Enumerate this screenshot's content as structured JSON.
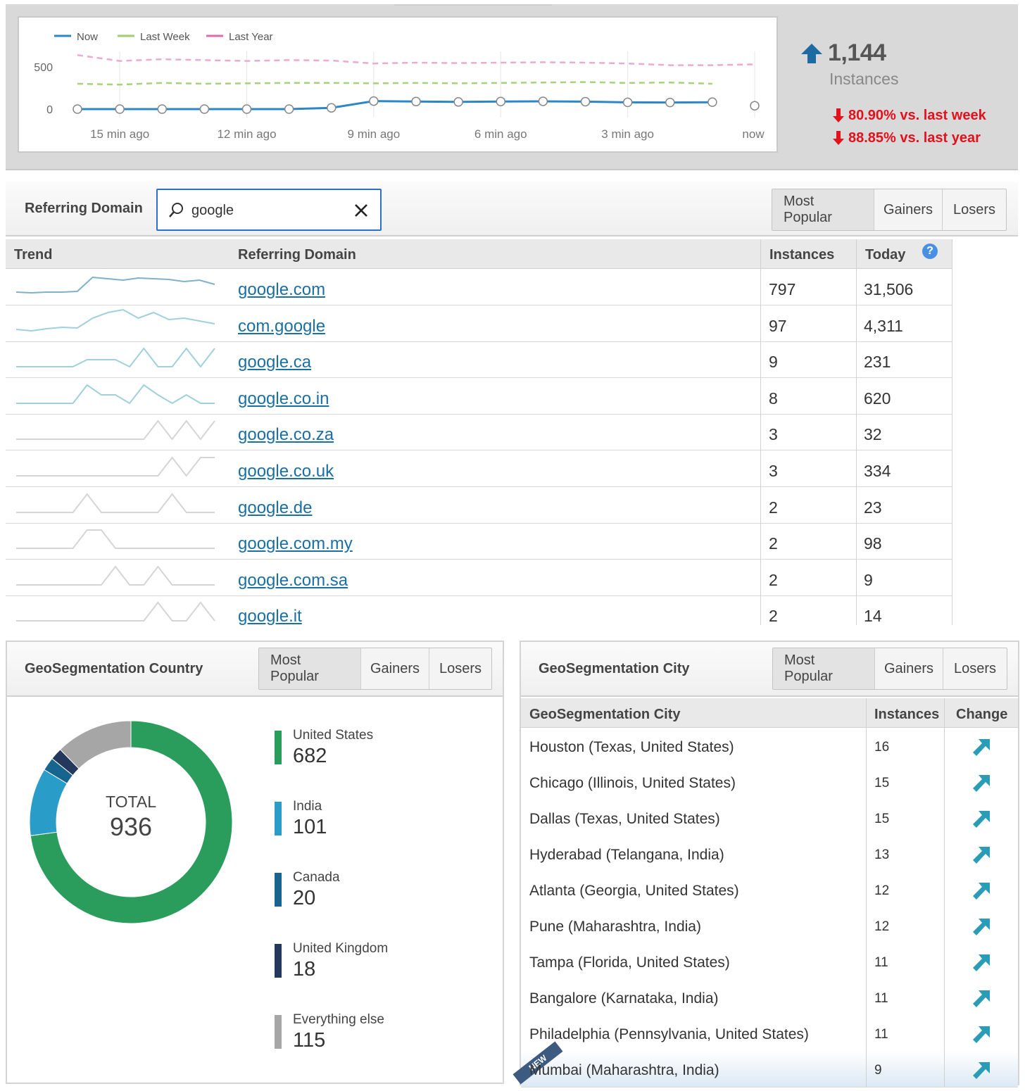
{
  "live_chart": {
    "legend": [
      {
        "name": "Now",
        "color": "#2c87c8"
      },
      {
        "name": "Last Week",
        "color": "#9fcf6f"
      },
      {
        "name": "Last Year",
        "color": "#e06ab0"
      }
    ],
    "y_ticks": [
      "500",
      "0"
    ],
    "x_ticks": [
      "15 min ago",
      "12 min ago",
      "9 min ago",
      "6 min ago",
      "3 min ago",
      "now"
    ]
  },
  "chart_data": {
    "type": "line",
    "x": [
      "-16",
      "-15",
      "-14",
      "-13",
      "-12",
      "-11",
      "-10",
      "-9",
      "-8",
      "-7",
      "-6",
      "-5",
      "-4",
      "-3",
      "-2",
      "-1",
      "0"
    ],
    "ylim": [
      0,
      750
    ],
    "series": [
      {
        "name": "Now",
        "values": [
          0,
          0,
          0,
          0,
          0,
          0,
          15,
          95,
          90,
          85,
          90,
          92,
          88,
          80,
          78,
          82,
          null
        ]
      },
      {
        "name": "Last Week",
        "values": [
          300,
          290,
          310,
          300,
          305,
          310,
          310,
          305,
          310,
          305,
          310,
          315,
          320,
          310,
          315,
          300,
          null
        ]
      },
      {
        "name": "Last Year",
        "values": [
          640,
          570,
          590,
          580,
          570,
          580,
          575,
          540,
          550,
          545,
          550,
          555,
          550,
          540,
          520,
          520,
          530
        ]
      }
    ]
  },
  "summary": {
    "total": "1,144",
    "label": "Instances",
    "vs_week": "80.90% vs. last week",
    "vs_year": "88.85% vs. last year"
  },
  "referring": {
    "title": "Referring Domain",
    "search_value": "google",
    "tabs": [
      "Most Popular",
      "Gainers",
      "Losers"
    ],
    "columns": [
      "Trend",
      "Referring Domain",
      "Instances",
      "Today"
    ],
    "help": "?",
    "rows": [
      {
        "domain": "google.com",
        "instances": "797",
        "today": "31,506",
        "trend": [
          5,
          4,
          5,
          5,
          6,
          26,
          24,
          22,
          25,
          24,
          23,
          20,
          22,
          16
        ],
        "color": "#7fb1c8"
      },
      {
        "domain": "com.google",
        "instances": "97",
        "today": "4,311",
        "trend": [
          4,
          2,
          5,
          7,
          6,
          20,
          28,
          32,
          20,
          28,
          18,
          20,
          16,
          12
        ],
        "color": "#9fd0dc"
      },
      {
        "domain": "google.ca",
        "instances": "9",
        "today": "231",
        "trend": [
          2,
          2,
          2,
          2,
          2,
          12,
          12,
          12,
          2,
          28,
          2,
          2,
          28,
          2,
          28
        ],
        "color": "#9fd0dc"
      },
      {
        "domain": "google.co.in",
        "instances": "8",
        "today": "620",
        "trend": [
          2,
          2,
          2,
          2,
          2,
          28,
          14,
          14,
          2,
          28,
          14,
          2,
          14,
          2,
          2
        ],
        "color": "#9fd0dc"
      },
      {
        "domain": "google.co.za",
        "instances": "3",
        "today": "32",
        "trend": [
          2,
          2,
          2,
          2,
          2,
          2,
          2,
          2,
          2,
          2,
          28,
          2,
          28,
          2,
          28
        ],
        "color": "#d5d5d5"
      },
      {
        "domain": "google.co.uk",
        "instances": "3",
        "today": "334",
        "trend": [
          2,
          2,
          2,
          2,
          2,
          2,
          2,
          2,
          2,
          2,
          2,
          28,
          2,
          28,
          28
        ],
        "color": "#d5d5d5"
      },
      {
        "domain": "google.de",
        "instances": "2",
        "today": "23",
        "trend": [
          2,
          2,
          2,
          2,
          2,
          28,
          2,
          2,
          2,
          2,
          2,
          28,
          2,
          2,
          2
        ],
        "color": "#d5d5d5"
      },
      {
        "domain": "google.com.my",
        "instances": "2",
        "today": "98",
        "trend": [
          2,
          2,
          2,
          2,
          2,
          28,
          28,
          2,
          2,
          2,
          2,
          2,
          2,
          2,
          2
        ],
        "color": "#d5d5d5"
      },
      {
        "domain": "google.com.sa",
        "instances": "2",
        "today": "9",
        "trend": [
          2,
          2,
          2,
          2,
          2,
          2,
          2,
          28,
          2,
          2,
          28,
          2,
          2,
          2,
          2
        ],
        "color": "#d5d5d5"
      },
      {
        "domain": "google.it",
        "instances": "2",
        "today": "14",
        "trend": [
          2,
          2,
          2,
          2,
          2,
          2,
          2,
          2,
          2,
          2,
          28,
          2,
          2,
          28,
          2
        ],
        "color": "#d5d5d5"
      }
    ]
  },
  "country": {
    "title": "GeoSegmentation Country",
    "tabs": [
      "Most Popular",
      "Gainers",
      "Losers"
    ],
    "total_label": "TOTAL",
    "total": "936",
    "items": [
      {
        "name": "United States",
        "value": "682",
        "num": 682,
        "color": "#2a9d5c"
      },
      {
        "name": "India",
        "value": "101",
        "num": 101,
        "color": "#2a9cc8"
      },
      {
        "name": "Canada",
        "value": "20",
        "num": 20,
        "color": "#17658f"
      },
      {
        "name": "United Kingdom",
        "value": "18",
        "num": 18,
        "color": "#24385e"
      },
      {
        "name": "Everything else",
        "value": "115",
        "num": 115,
        "color": "#a6a6a6"
      }
    ]
  },
  "city": {
    "title": "GeoSegmentation City",
    "tabs": [
      "Most Popular",
      "Gainers",
      "Losers"
    ],
    "columns": [
      "GeoSegmentation City",
      "Instances",
      "Change"
    ],
    "new_badge": "NEW",
    "rows": [
      {
        "city": "Houston (Texas, United States)",
        "instances": "16"
      },
      {
        "city": "Chicago (Illinois, United States)",
        "instances": "15"
      },
      {
        "city": "Dallas (Texas, United States)",
        "instances": "15"
      },
      {
        "city": "Hyderabad (Telangana, India)",
        "instances": "13"
      },
      {
        "city": "Atlanta (Georgia, United States)",
        "instances": "12"
      },
      {
        "city": "Pune (Maharashtra, India)",
        "instances": "12"
      },
      {
        "city": "Tampa (Florida, United States)",
        "instances": "11"
      },
      {
        "city": "Bangalore (Karnataka, India)",
        "instances": "11"
      },
      {
        "city": "Philadelphia (Pennsylvania, United States)",
        "instances": "11"
      },
      {
        "city": "Mumbai (Maharashtra, India)",
        "instances": "9"
      }
    ]
  }
}
